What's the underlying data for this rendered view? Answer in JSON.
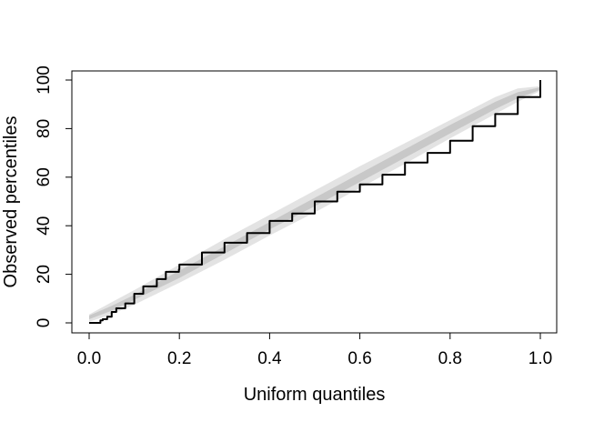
{
  "chart_data": {
    "type": "line",
    "title": "",
    "xlabel": "Uniform quantiles",
    "ylabel": "Observed percentiles",
    "xlim": [
      0.0,
      1.0
    ],
    "ylim": [
      0,
      100
    ],
    "x_ticks": [
      "0.0",
      "0.2",
      "0.4",
      "0.6",
      "0.8",
      "1.0"
    ],
    "y_ticks": [
      "0",
      "20",
      "40",
      "60",
      "80",
      "100"
    ],
    "grid": false,
    "legend": "none",
    "colors": {
      "outer_band": "#e3e3e3",
      "inner_band": "#c8c8c8",
      "line": "#000000"
    },
    "bands": {
      "x": [
        0.0,
        0.05,
        0.1,
        0.2,
        0.3,
        0.4,
        0.5,
        0.6,
        0.7,
        0.8,
        0.9,
        0.95,
        1.0
      ],
      "outer_lower": [
        0.5,
        3.5,
        7.5,
        16.5,
        26,
        36,
        45.5,
        55.5,
        65.5,
        76,
        86,
        91,
        95.5
      ],
      "outer_upper": [
        3.5,
        8.5,
        13.5,
        24,
        34.5,
        44.5,
        54.5,
        64.5,
        74,
        83.5,
        93,
        96.5,
        97.5
      ],
      "inner_lower": [
        1.5,
        5,
        9.5,
        18.5,
        28.5,
        38.5,
        48,
        58,
        68,
        78,
        88,
        92.5,
        96
      ],
      "inner_upper": [
        3,
        7,
        11.5,
        21.5,
        31.5,
        41.5,
        51.5,
        61.5,
        71.5,
        81.5,
        91,
        95,
        97
      ]
    },
    "series": [
      {
        "x": [
          0.0,
          0.02,
          0.025,
          0.03,
          0.04,
          0.05,
          0.06,
          0.08,
          0.1,
          0.12,
          0.15,
          0.17,
          0.199,
          0.2,
          0.25,
          0.3,
          0.35,
          0.4,
          0.45,
          0.5,
          0.55,
          0.6,
          0.65,
          0.7,
          0.75,
          0.8,
          0.85,
          0.9,
          0.95,
          1.0
        ],
        "values": [
          0,
          0,
          1,
          1.5,
          2.5,
          4.5,
          6,
          8,
          12,
          15,
          18,
          21,
          22,
          24,
          29,
          33,
          37,
          42,
          45,
          50,
          54,
          57,
          61,
          66,
          70,
          75,
          81,
          86,
          93,
          100
        ]
      }
    ]
  }
}
